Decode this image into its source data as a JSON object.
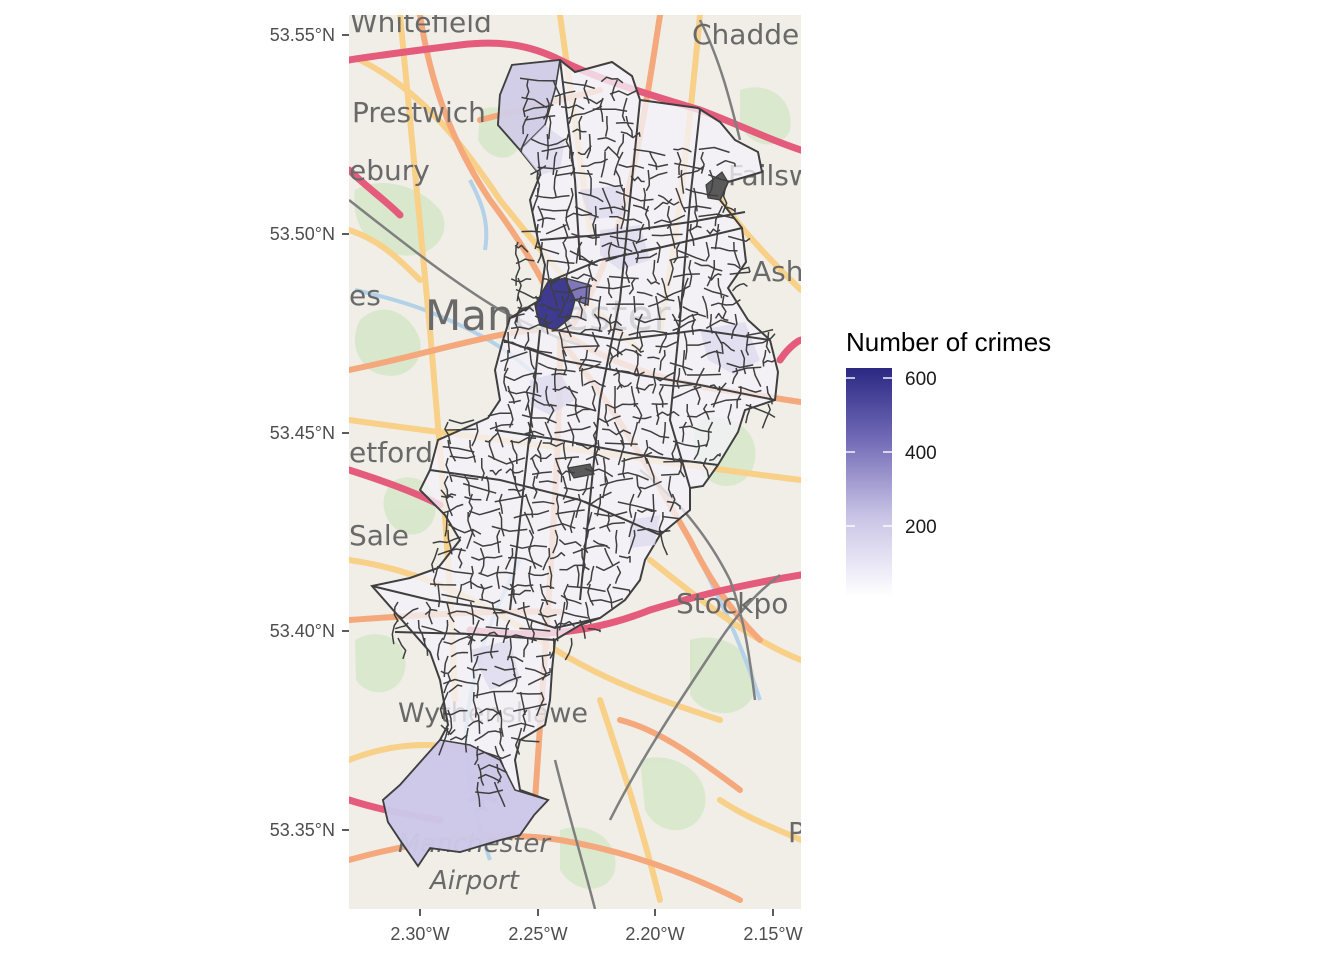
{
  "map": {
    "axes": {
      "x_ticks": [
        "2.30°W",
        "2.25°W",
        "2.20°W",
        "2.15°W"
      ],
      "y_ticks": [
        "53.55°N",
        "53.50°N",
        "53.45°N",
        "53.40°N",
        "53.35°N"
      ]
    },
    "basemap_labels": {
      "whitefield": "Whitefield",
      "chadderton": "Chadde",
      "prestwich": "Prestwich",
      "salford": "ebury",
      "failsworth": "Failswo",
      "ashton": "Ash",
      "eccles": "es",
      "manchester": "Manchester",
      "stretford": "etford",
      "sale": "Sale",
      "stockport": "Stockpo",
      "wythenshawe": "Wythenshawe",
      "airport_line1": "Manchester",
      "airport_line2": "Airport",
      "poynton": "P"
    },
    "legend": {
      "title": "Number of crimes",
      "ticks": [
        "600",
        "400",
        "200"
      ],
      "color_low": "#ffffff",
      "color_high": "#2b2883"
    },
    "colors": {
      "land": "#eeece4",
      "park": "#d2e5c4",
      "motorway": "#e2456a",
      "primary_road": "#f39d6a",
      "secondary_road": "#f7ca77",
      "railway": "#6e6e6e",
      "water": "#a9cbe6",
      "boundary": "#3f3f3f",
      "tick_text": "#4d4d4d"
    }
  }
}
